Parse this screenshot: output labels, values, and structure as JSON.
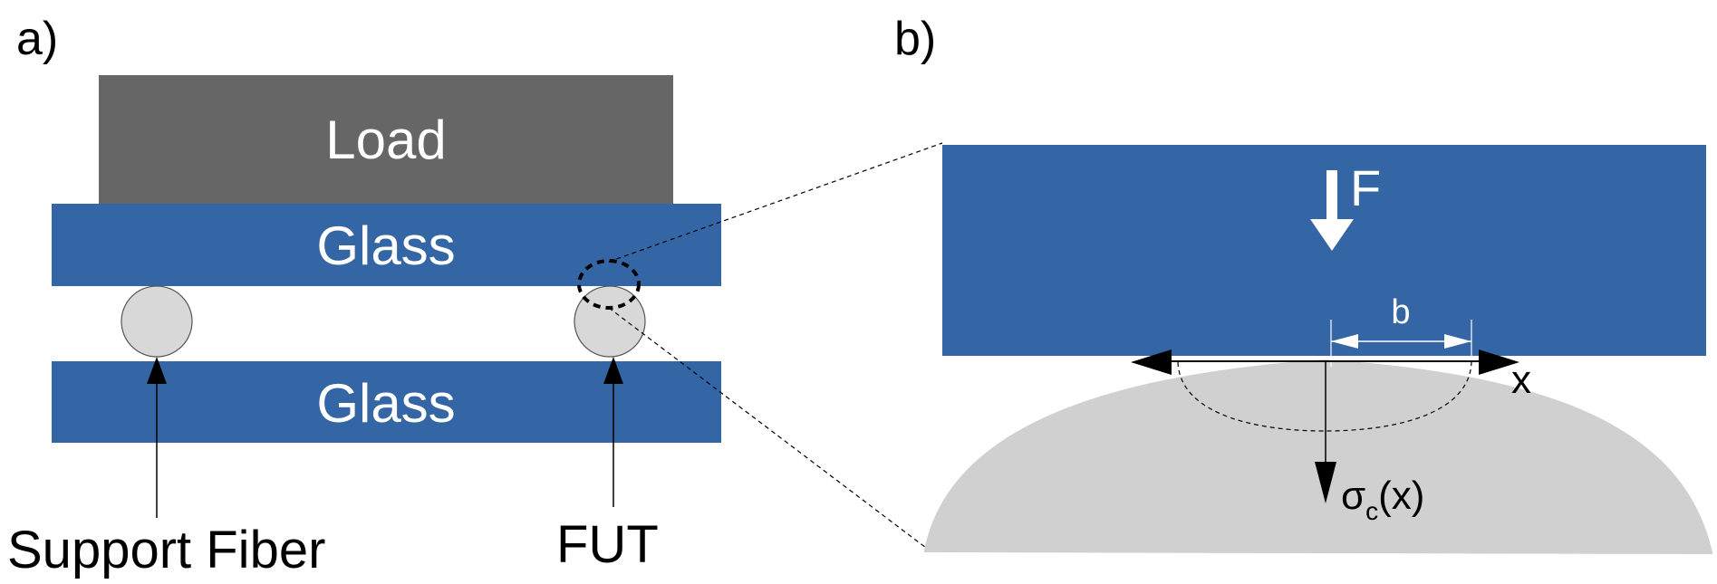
{
  "panel_a": {
    "label": "a)",
    "load_label": "Load",
    "top_glass_label": "Glass",
    "bottom_glass_label": "Glass",
    "support_fiber_label": "Support Fiber",
    "fut_label": "FUT"
  },
  "panel_b": {
    "label": "b)",
    "force_label": "F",
    "width_label": "b",
    "x_axis_label": "x",
    "stress_symbol": "σ",
    "stress_subscript": "c",
    "stress_arg": "(x)"
  },
  "colors": {
    "glass": "#3465a4",
    "load": "#666666",
    "fiber": "#d8d8d8",
    "fiber_section": "#d0d0d0",
    "text_dark": "#000000",
    "text_light": "#ffffff"
  }
}
